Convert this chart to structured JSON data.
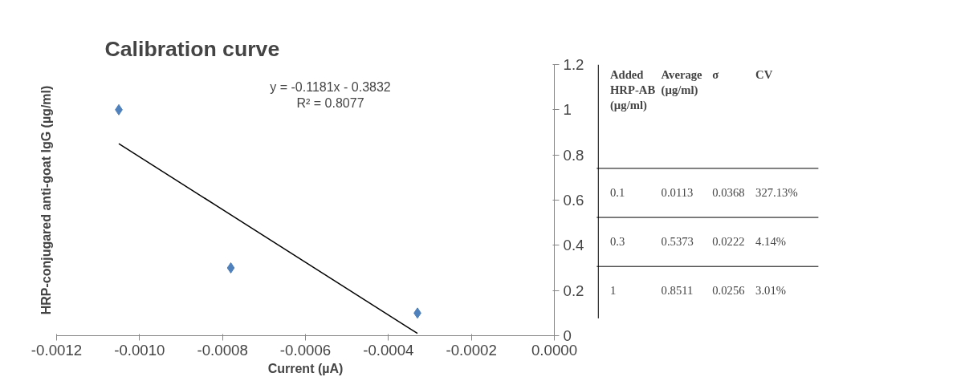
{
  "chart_data": [
    {
      "type": "scatter",
      "title": "Calibration curve",
      "xlabel": "Current (µA)",
      "ylabel": "HRP-conjugared anti-goat IgG (µg/ml)",
      "series": [
        {
          "type": "scatter",
          "color": "#4f81bd",
          "marker": "diamond",
          "x": [
            -0.00105,
            -0.00078,
            -0.00033
          ],
          "values": [
            1,
            0.3,
            0.1
          ]
        },
        {
          "type": "line",
          "color": "#000000",
          "marker": "none",
          "x": [
            -0.00105,
            -0.00033
          ],
          "values": [
            0.85,
            0.01
          ]
        }
      ],
      "annotations": [
        "y = -0.1181x - 0.3832",
        "R² = 0.8077"
      ],
      "xlim": [
        -0.0012,
        0
      ],
      "xticks": [
        -0.0012,
        {
          "value": -0.001,
          "label": "-0.0010"
        },
        -0.0008,
        -0.0006,
        -0.0004,
        -0.0002,
        {
          "value": 0,
          "label": "0.0000"
        }
      ],
      "ylim": [
        0,
        1.2
      ],
      "yticks": [
        0,
        0.2,
        0.4,
        0.6,
        0.8,
        1,
        1.2
      ],
      "grid": false
    },
    {
      "type": "other",
      "categories": [
        "Added HRP-AB (µg/ml)",
        "Average (µg/ml)",
        "σ",
        "CV"
      ],
      "annotations": [
        "0.1",
        "0.0113",
        "0.0368",
        "327.13%",
        "0.3",
        "0.5373",
        "0.0222",
        "4.14%",
        "1",
        "0.8511",
        "0.0256",
        "3.01%"
      ]
    }
  ]
}
